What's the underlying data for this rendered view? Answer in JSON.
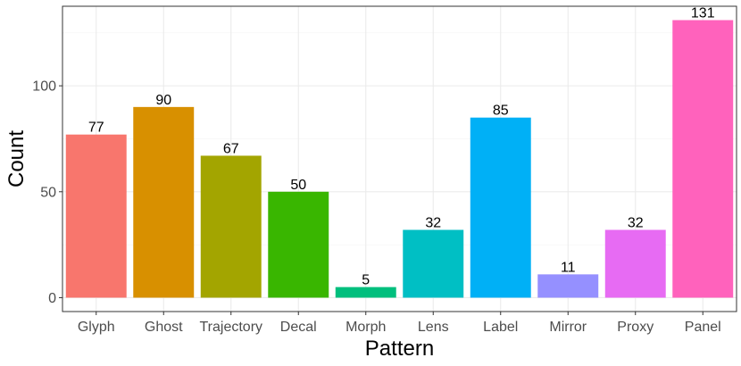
{
  "chart_data": {
    "type": "bar",
    "xlabel": "Pattern",
    "ylabel": "Count",
    "categories": [
      "Glyph",
      "Ghost",
      "Trajectory",
      "Decal",
      "Morph",
      "Lens",
      "Label",
      "Mirror",
      "Proxy",
      "Panel"
    ],
    "values": [
      77,
      90,
      67,
      50,
      5,
      32,
      85,
      11,
      32,
      131
    ],
    "value_labels": [
      "77",
      "90",
      "67",
      "50",
      "5",
      "32",
      "85",
      "11",
      "32",
      "131"
    ],
    "colors": [
      "#F8766D",
      "#D89000",
      "#A3A500",
      "#39B600",
      "#00BF7D",
      "#00BFC4",
      "#00B0F6",
      "#9590FF",
      "#E76BF3",
      "#FF62BC"
    ],
    "yticks": [
      0,
      50,
      100
    ],
    "ytick_labels": [
      "0",
      "50",
      "100"
    ],
    "ylim": [
      -6.55,
      137.55
    ],
    "grid": true,
    "legend": "none"
  }
}
